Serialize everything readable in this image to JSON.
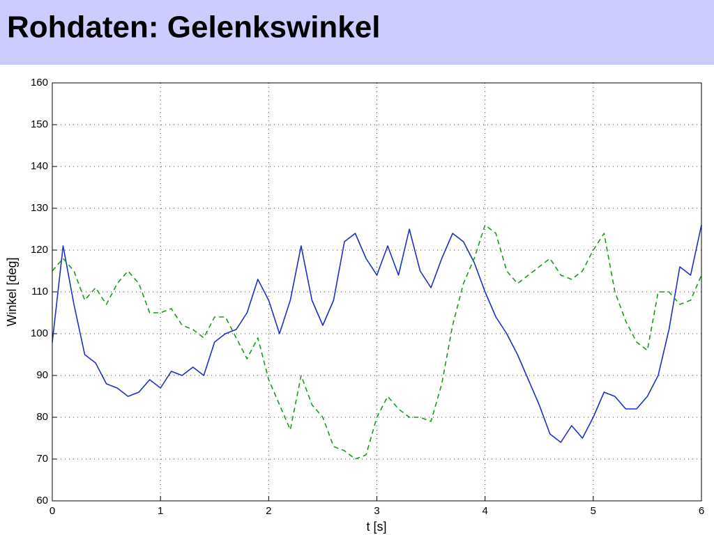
{
  "chart_data": {
    "type": "line",
    "title": "Rohdaten: Gelenkswinkel",
    "x_label": "t   [s]",
    "y_label": "Winkel   [deg]",
    "x": [
      0,
      0.1,
      0.2,
      0.3,
      0.4,
      0.5,
      0.6,
      0.7,
      0.8,
      0.9,
      1,
      1.1,
      1.2,
      1.3,
      1.4,
      1.5,
      1.6,
      1.7,
      1.8,
      1.9,
      2,
      2.1,
      2.2,
      2.3,
      2.4,
      2.5,
      2.6,
      2.7,
      2.8,
      2.9,
      3,
      3.1,
      3.2,
      3.3,
      3.4,
      3.5,
      3.6,
      3.7,
      3.8,
      3.9,
      4,
      4.1,
      4.2,
      4.3,
      4.4,
      4.5,
      4.6,
      4.7,
      4.8,
      4.9,
      5,
      5.1,
      5.2,
      5.3,
      5.4,
      5.5,
      5.6,
      5.7,
      5.8,
      5.9,
      6
    ],
    "series": [
      {
        "color": "#1a2fc8",
        "dash": false,
        "values": [
          98,
          121,
          107,
          95,
          93,
          88,
          87,
          85,
          86,
          89,
          87,
          91,
          90,
          92,
          90,
          98,
          100,
          101,
          105,
          113,
          108,
          100,
          108,
          121,
          108,
          102,
          108,
          122,
          124,
          118,
          114,
          121,
          114,
          125,
          115,
          111,
          118,
          124,
          122,
          117,
          110,
          104,
          100,
          95,
          89,
          83,
          76,
          74,
          78,
          75,
          80,
          86,
          85,
          82,
          82,
          85,
          90,
          101,
          116,
          114,
          126
        ]
      },
      {
        "color": "#1a9a1a",
        "dash": true,
        "values": [
          115,
          118,
          115,
          108,
          111,
          107,
          112,
          115,
          112,
          105,
          105,
          106,
          102,
          101,
          99,
          104,
          104,
          99,
          94,
          99,
          89,
          83,
          77,
          90,
          83,
          80,
          73,
          72,
          70,
          71,
          80,
          85,
          82,
          80,
          80,
          79,
          88,
          102,
          112,
          118,
          126,
          124,
          115,
          112,
          114,
          116,
          118,
          114,
          113,
          115,
          120,
          124,
          110,
          103,
          98,
          96,
          110,
          110,
          107,
          108,
          114
        ]
      }
    ],
    "xlim": [
      0,
      6
    ],
    "xticks": [
      0,
      1,
      2,
      3,
      4,
      5,
      6
    ],
    "ylim": [
      60,
      160
    ],
    "yticks": [
      60,
      70,
      80,
      90,
      100,
      110,
      120,
      130,
      140,
      150,
      160
    ],
    "grid": true
  }
}
